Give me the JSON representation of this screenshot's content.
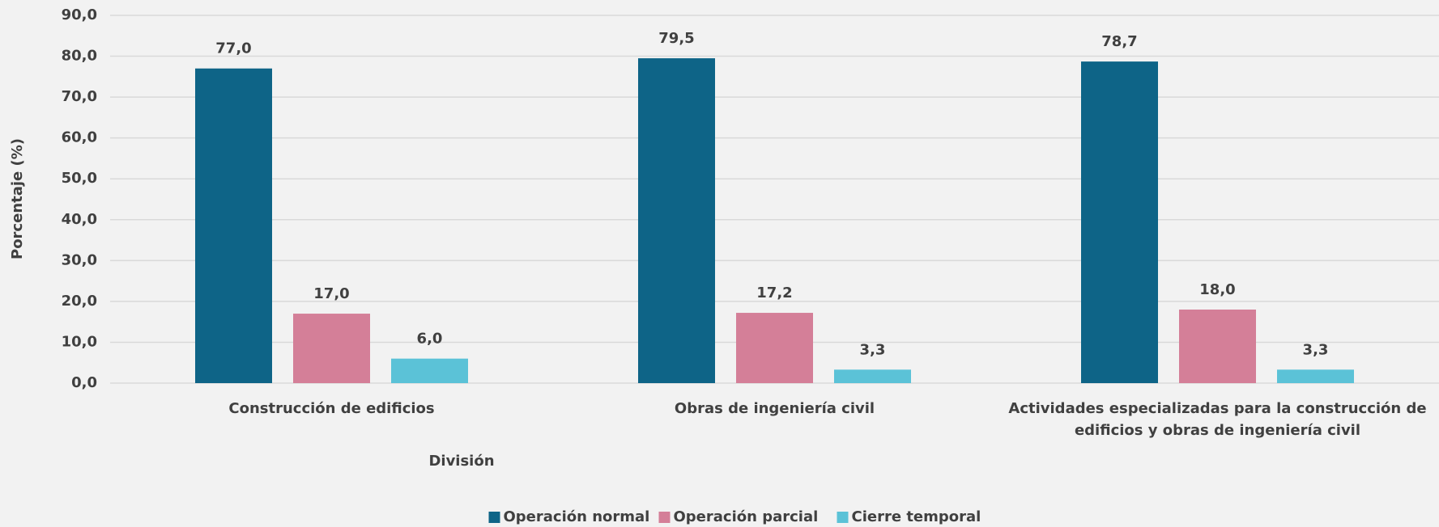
{
  "chart_data": {
    "type": "bar",
    "x_label": "División",
    "y_label": "Porcentaje (%)",
    "categories": [
      "Construcción de edificios",
      "Obras de ingeniería civil",
      "Actividades especializadas para la construcción de edificios y obras de ingeniería civil"
    ],
    "series": [
      {
        "name": "Operación normal",
        "color": "#0e6487",
        "values": [
          77.0,
          79.5,
          78.7
        ],
        "value_labels": [
          "77,0",
          "79,5",
          "78,7"
        ]
      },
      {
        "name": "Operación parcial",
        "color": "#d47f98",
        "values": [
          17.0,
          17.2,
          18.0
        ],
        "value_labels": [
          "17,0",
          "17,2",
          "18,0"
        ]
      },
      {
        "name": "Cierre temporal",
        "color": "#5bc2d7",
        "values": [
          6.0,
          3.3,
          3.3
        ],
        "value_labels": [
          "6,0",
          "3,3",
          "3,3"
        ]
      }
    ],
    "ylim": [
      0,
      90
    ],
    "yticks": [
      {
        "value": 0,
        "label": "0,0"
      },
      {
        "value": 10,
        "label": "10,0"
      },
      {
        "value": 20,
        "label": "20,0"
      },
      {
        "value": 30,
        "label": "30,0"
      },
      {
        "value": 40,
        "label": "40,0"
      },
      {
        "value": 50,
        "label": "50,0"
      },
      {
        "value": 60,
        "label": "60,0"
      },
      {
        "value": 70,
        "label": "70,0"
      },
      {
        "value": 80,
        "label": "80,0"
      },
      {
        "value": 90,
        "label": "90,0"
      }
    ],
    "grid": true,
    "legend": "bottom"
  }
}
